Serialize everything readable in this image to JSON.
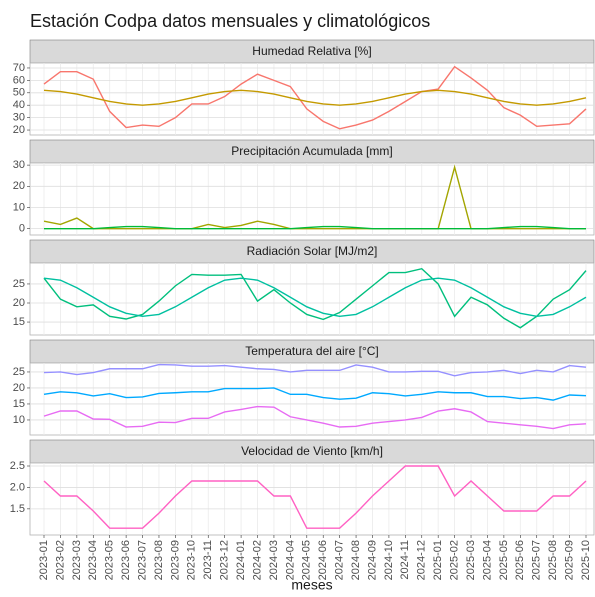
{
  "chart_data": {
    "type": "line",
    "title": "Estación Codpa datos mensuales y climatológicos",
    "x_label": "meses",
    "categories": [
      "2023-01",
      "2023-02",
      "2023-03",
      "2023-04",
      "2023-05",
      "2023-06",
      "2023-07",
      "2023-08",
      "2023-09",
      "2023-10",
      "2023-11",
      "2023-12",
      "2024-01",
      "2024-02",
      "2024-03",
      "2024-04",
      "2024-05",
      "2024-06",
      "2024-07",
      "2024-08",
      "2024-09",
      "2024-10",
      "2024-11",
      "2024-12",
      "2025-01",
      "2025-02",
      "2025-03",
      "2025-04",
      "2025-05",
      "2025-06",
      "2025-07",
      "2025-08",
      "2025-09",
      "2025-10"
    ],
    "grid": true,
    "panels": [
      {
        "title": "Humedad Relativa [%]",
        "ylim": [
          16,
          74
        ],
        "yticks": [
          20,
          30,
          40,
          50,
          60,
          70
        ],
        "series": [
          {
            "color": "#f8766d",
            "values": [
              57,
              67,
              67,
              61,
              35,
              22,
              24,
              23,
              30,
              41,
              41,
              47,
              57,
              65,
              60,
              55,
              37,
              27,
              21,
              24,
              28,
              35,
              43,
              51,
              53,
              71,
              62,
              52,
              38,
              32,
              23,
              24,
              25,
              37
            ]
          },
          {
            "color": "#c49a00",
            "values": [
              52,
              51,
              49,
              46,
              43,
              41,
              40,
              41,
              43,
              46,
              49,
              51,
              52,
              51,
              49,
              46,
              43,
              41,
              40,
              41,
              43,
              46,
              49,
              51,
              52,
              51,
              49,
              46,
              43,
              41,
              40,
              41,
              43,
              46
            ]
          }
        ]
      },
      {
        "title": "Precipitación Acumulada [mm]",
        "ylim": [
          -3,
          31
        ],
        "yticks": [
          0,
          10,
          20,
          30
        ],
        "series": [
          {
            "color": "#a3a500",
            "values": [
              3.5,
              2,
              5,
              0,
              0,
              0,
              0,
              0,
              0,
              0,
              2,
              0.5,
              1.5,
              3.5,
              2,
              0,
              0,
              0,
              0,
              0,
              0,
              0,
              0,
              0,
              0,
              29,
              0,
              0,
              0,
              0,
              0,
              0,
              0,
              0
            ]
          },
          {
            "color": "#00ba38",
            "values": [
              0,
              0,
              0,
              0,
              0.5,
              1,
              1,
              0.5,
              0,
              0,
              0,
              0,
              0,
              0,
              0,
              0,
              0.5,
              1,
              1,
              0.5,
              0,
              0,
              0,
              0,
              0,
              0,
              0,
              0,
              0.5,
              1,
              1,
              0.5,
              0,
              0
            ]
          }
        ]
      },
      {
        "title": "Radiación Solar [MJ/m2]",
        "ylim": [
          11.6,
          30.5
        ],
        "yticks": [
          15,
          20,
          25
        ],
        "series": [
          {
            "color": "#00bf7d",
            "values": [
              26.5,
              21,
              19,
              19.5,
              16.5,
              15.8,
              17,
              20.5,
              24.5,
              27.5,
              27.3,
              27.3,
              27.5,
              20.5,
              23.5,
              20,
              17,
              15.7,
              17.5,
              21,
              24.5,
              28,
              28,
              29,
              25,
              16.5,
              21.5,
              19.5,
              16,
              13.5,
              16.5,
              21,
              23.5,
              28.5
            ]
          },
          {
            "color": "#00c0a0",
            "values": [
              26.5,
              26,
              24,
              21.5,
              19,
              17.3,
              16.5,
              17,
              19,
              21.5,
              24,
              26,
              26.5,
              26,
              24,
              21.5,
              19,
              17.3,
              16.5,
              17,
              19,
              21.5,
              24,
              26,
              26.5,
              26,
              24,
              21.5,
              19,
              17.3,
              16.5,
              17,
              19,
              21.5
            ]
          }
        ]
      },
      {
        "title": "Temperatura del aire [°C]",
        "ylim": [
          5.3,
          27.8
        ],
        "yticks": [
          10,
          15,
          20,
          25
        ],
        "series": [
          {
            "color": "#9590ff",
            "values": [
              24.8,
              25,
              24.2,
              24.8,
              26,
              26,
              26,
              27.3,
              27.2,
              26.8,
              26.8,
              27,
              26.5,
              26,
              25.8,
              25,
              25.5,
              25.5,
              25.5,
              27.2,
              26.5,
              25,
              25,
              25.2,
              25.2,
              23.8,
              24.8,
              25,
              25.5,
              24.5,
              25.5,
              25,
              27,
              26.5
            ]
          },
          {
            "color": "#00a9ff",
            "values": [
              18,
              18.8,
              18.5,
              17.5,
              18.2,
              17,
              17.2,
              18.3,
              18.5,
              18.8,
              18.8,
              19.8,
              19.8,
              19.8,
              20,
              18,
              18,
              17,
              16.5,
              16.8,
              18.5,
              18.2,
              17.5,
              18,
              18.8,
              18.5,
              18.5,
              17.3,
              17.3,
              16.7,
              17,
              16.2,
              17.8,
              17.6
            ]
          },
          {
            "color": "#e76bf3",
            "values": [
              11.2,
              12.8,
              12.8,
              10.3,
              10.2,
              7.8,
              8,
              9.3,
              9.2,
              10.5,
              10.5,
              12.5,
              13.3,
              14.2,
              14,
              11,
              10,
              9,
              7.8,
              8,
              9,
              9.5,
              10,
              10.8,
              12.8,
              13.5,
              12.5,
              9.5,
              9,
              8.5,
              8,
              7.3,
              8.5,
              8.8
            ]
          }
        ]
      },
      {
        "title": "Velocidad de Viento [km/h]",
        "ylim": [
          0.89,
          2.57
        ],
        "yticks": [
          1.5,
          {
            "value": 2,
            "label": "2.0"
          },
          2.5
        ],
        "series": [
          {
            "color": "#ff61c3",
            "values": [
              2.15,
              1.8,
              1.8,
              1.45,
              1.05,
              1.05,
              1.05,
              1.4,
              1.8,
              2.15,
              2.15,
              2.15,
              2.15,
              2.15,
              1.8,
              1.8,
              1.05,
              1.05,
              1.05,
              1.4,
              1.8,
              2.15,
              2.5,
              2.5,
              2.5,
              1.8,
              2.15,
              1.8,
              1.45,
              1.45,
              1.45,
              1.8,
              1.8,
              2.15
            ]
          }
        ]
      }
    ]
  }
}
